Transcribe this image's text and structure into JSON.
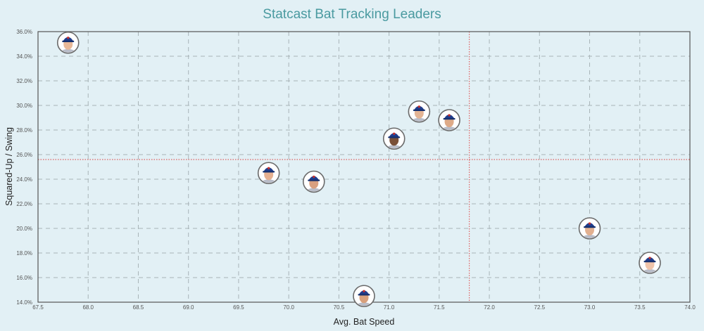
{
  "title": "Statcast Bat Tracking Leaders",
  "chart_data": {
    "type": "scatter",
    "title": "Statcast Bat Tracking Leaders",
    "xlabel": "Avg. Bat Speed",
    "ylabel": "Squared-Up / Swing",
    "xlim": [
      67.5,
      74.0
    ],
    "ylim": [
      14.0,
      36.0
    ],
    "x_ticks": [
      "67.5",
      "68.0",
      "68.5",
      "69.0",
      "69.5",
      "70.0",
      "70.5",
      "71.0",
      "71.5",
      "72.0",
      "72.5",
      "73.0",
      "73.5",
      "74.0"
    ],
    "y_ticks": [
      "14.0%",
      "16.0%",
      "18.0%",
      "20.0%",
      "22.0%",
      "24.0%",
      "26.0%",
      "28.0%",
      "30.0%",
      "32.0%",
      "34.0%",
      "36.0%"
    ],
    "grid": true,
    "grid_style": "dashed",
    "legend": "none",
    "marker": "player-headshot",
    "reference_lines": {
      "vertical_x": 71.8,
      "horizontal_y": 25.6,
      "color": "#e06060",
      "style": "dotted"
    },
    "points": [
      {
        "x": 67.8,
        "y": 35.1
      },
      {
        "x": 69.8,
        "y": 24.5
      },
      {
        "x": 70.25,
        "y": 23.8
      },
      {
        "x": 70.75,
        "y": 14.5
      },
      {
        "x": 71.05,
        "y": 27.3
      },
      {
        "x": 71.3,
        "y": 29.5
      },
      {
        "x": 71.6,
        "y": 28.8
      },
      {
        "x": 73.0,
        "y": 20.0
      },
      {
        "x": 73.6,
        "y": 17.2
      }
    ]
  },
  "colors": {
    "background": "#e2f0f5",
    "title": "#4a9aa0",
    "grid": "#a8b4b8",
    "axis": "#555555",
    "reference": "#e06060",
    "cap": "#1f3c8c"
  }
}
